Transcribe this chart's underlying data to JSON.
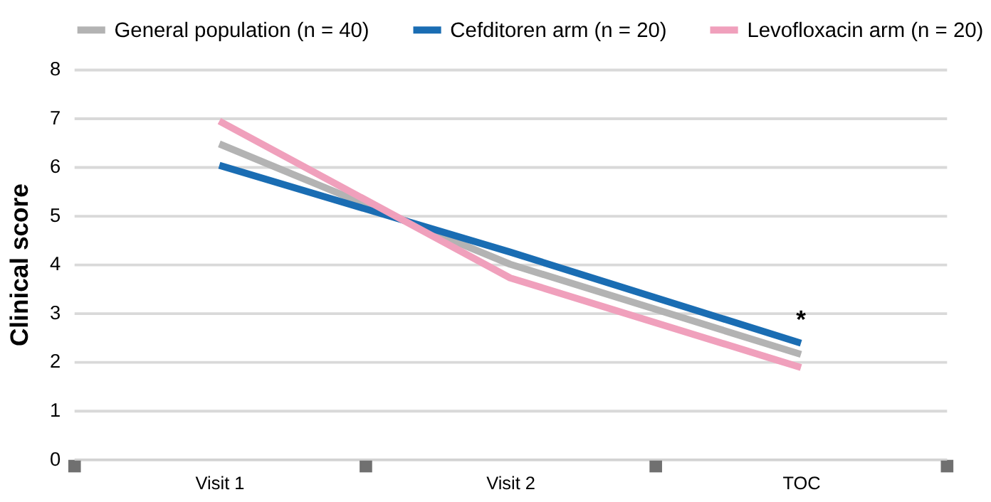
{
  "chart_data": {
    "type": "line",
    "ylabel": "Clinical score",
    "categories": [
      "Visit 1",
      "Visit 2",
      "TOC"
    ],
    "series": [
      {
        "name": "General population (n = 40)",
        "color": "#b3b3b3",
        "values": [
          6.47,
          4.0,
          2.15
        ]
      },
      {
        "name": "Cefditoren arm (n = 20)",
        "color": "#1a6db3",
        "values": [
          6.03,
          4.25,
          2.38
        ]
      },
      {
        "name": "Levofloxacin arm (n = 20)",
        "color": "#f0a0bc",
        "values": [
          6.94,
          3.72,
          1.88
        ]
      }
    ],
    "ylim": [
      0,
      8
    ],
    "yticks": [
      0,
      1,
      2,
      3,
      4,
      5,
      6,
      7,
      8
    ],
    "grid": "y",
    "legend": "top",
    "marker": "none",
    "line_style": "solid",
    "annotations": [
      "*"
    ]
  }
}
